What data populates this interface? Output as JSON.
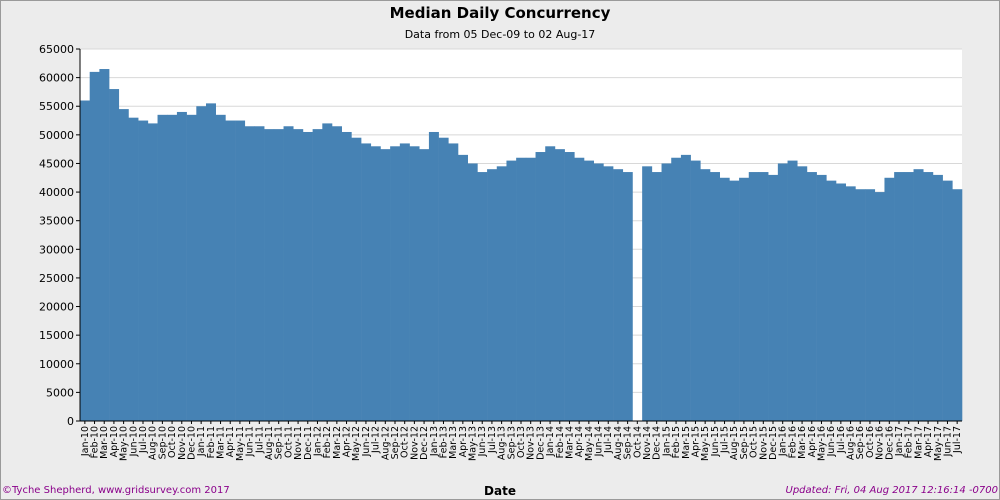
{
  "chart_data": {
    "type": "bar",
    "title": "Median Daily Concurrency",
    "subtitle": "Data from 05 Dec-09 to 02 Aug-17",
    "xlabel": "Date",
    "ylabel": "",
    "ylim": [
      0,
      65000
    ],
    "yticks": [
      0,
      5000,
      10000,
      15000,
      20000,
      25000,
      30000,
      35000,
      40000,
      45000,
      50000,
      55000,
      60000,
      65000
    ],
    "grid": true,
    "bar_color": "#4682b4",
    "categories": [
      "Jan-10",
      "Feb-10",
      "Mar-10",
      "Apr-10",
      "May-10",
      "Jun-10",
      "Jul-10",
      "Aug-10",
      "Sep-10",
      "Oct-10",
      "Nov-10",
      "Dec-10",
      "Jan-11",
      "Feb-11",
      "Mar-11",
      "Apr-11",
      "May-11",
      "Jun-11",
      "Jul-11",
      "Aug-11",
      "Sep-11",
      "Oct-11",
      "Nov-11",
      "Dec-11",
      "Jan-12",
      "Feb-12",
      "Mar-12",
      "Apr-12",
      "May-12",
      "Jun-12",
      "Jul-12",
      "Aug-12",
      "Sep-12",
      "Oct-12",
      "Nov-12",
      "Dec-12",
      "Jan-13",
      "Feb-13",
      "Mar-13",
      "Apr-13",
      "May-13",
      "Jun-13",
      "Jul-13",
      "Aug-13",
      "Sep-13",
      "Oct-13",
      "Nov-13",
      "Dec-13",
      "Jan-14",
      "Feb-14",
      "Mar-14",
      "Apr-14",
      "May-14",
      "Jun-14",
      "Jul-14",
      "Aug-14",
      "Sep-14",
      "Oct-14",
      "Nov-14",
      "Dec-14",
      "Jan-15",
      "Feb-15",
      "Mar-15",
      "Apr-15",
      "May-15",
      "Jun-15",
      "Jul-15",
      "Aug-15",
      "Sep-15",
      "Oct-15",
      "Nov-15",
      "Dec-15",
      "Jan-16",
      "Feb-16",
      "Mar-16",
      "Apr-16",
      "May-16",
      "Jun-16",
      "Jul-16",
      "Aug-16",
      "Sep-16",
      "Oct-16",
      "Nov-16",
      "Dec-16",
      "Jan-17",
      "Feb-17",
      "Mar-17",
      "Apr-17",
      "May-17",
      "Jun-17",
      "Jul-17"
    ],
    "values": [
      56000,
      61000,
      61500,
      58000,
      54500,
      53000,
      52500,
      52000,
      53500,
      53500,
      54000,
      53500,
      55000,
      55500,
      53500,
      52500,
      52500,
      51500,
      51500,
      51000,
      51000,
      51500,
      51000,
      50500,
      51000,
      52000,
      51500,
      50500,
      49500,
      48500,
      48000,
      47500,
      48000,
      48500,
      48000,
      47500,
      50500,
      49500,
      48500,
      46500,
      45000,
      43500,
      44000,
      44500,
      45500,
      46000,
      46000,
      47000,
      48000,
      47500,
      47000,
      46000,
      45500,
      45000,
      44500,
      44000,
      43500,
      0,
      44500,
      43500,
      45000,
      46000,
      46500,
      45500,
      44000,
      43500,
      42500,
      42000,
      42500,
      43500,
      43500,
      43000,
      45000,
      45500,
      44500,
      43500,
      43000,
      42000,
      41500,
      41000,
      40500,
      40500,
      40000,
      42500,
      43500,
      43500,
      44000,
      43500,
      43000,
      42000,
      40500
    ]
  },
  "footer": {
    "credit": "©Tyche Shepherd, www.gridsurvey.com 2017",
    "updated": "Updated: Fri, 04 Aug 2017 12:16:14 -0700"
  }
}
